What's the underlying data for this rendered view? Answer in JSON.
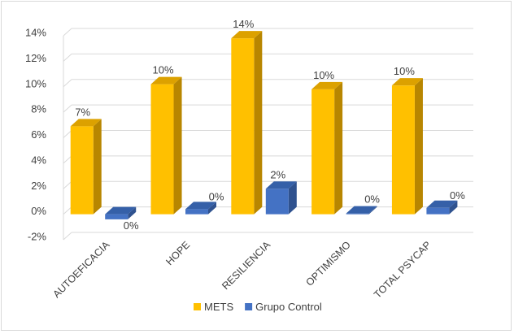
{
  "chart_data": {
    "type": "bar",
    "title": "",
    "xlabel": "",
    "ylabel": "",
    "categories": [
      "AUTOEFICACIA",
      "HOPE",
      "RESILIENCIA",
      "OPTIMISMO",
      "TOTAL PSYCAP"
    ],
    "series": [
      {
        "name": "METS",
        "values": [
          6.9,
          10.2,
          13.8,
          9.8,
          10.1
        ],
        "labels": [
          "7%",
          "10%",
          "14%",
          "10%",
          "10%"
        ],
        "color": "#FFC000",
        "top_color": "#DCA100",
        "side_color": "#B88600"
      },
      {
        "name": "Grupo Control",
        "values": [
          -0.4,
          0.4,
          2.0,
          0.05,
          0.5
        ],
        "labels": [
          "0%",
          "0%",
          "2%",
          "0%",
          "0%"
        ],
        "color": "#4472C4",
        "top_color": "#3560A8",
        "side_color": "#2F528F"
      }
    ],
    "yticks": [
      "-2%",
      "0%",
      "2%",
      "4%",
      "6%",
      "8%",
      "10%",
      "12%",
      "14%"
    ],
    "ylim": [
      -2,
      14
    ],
    "grid": true,
    "legend": "bottom",
    "style": "3d-column"
  }
}
